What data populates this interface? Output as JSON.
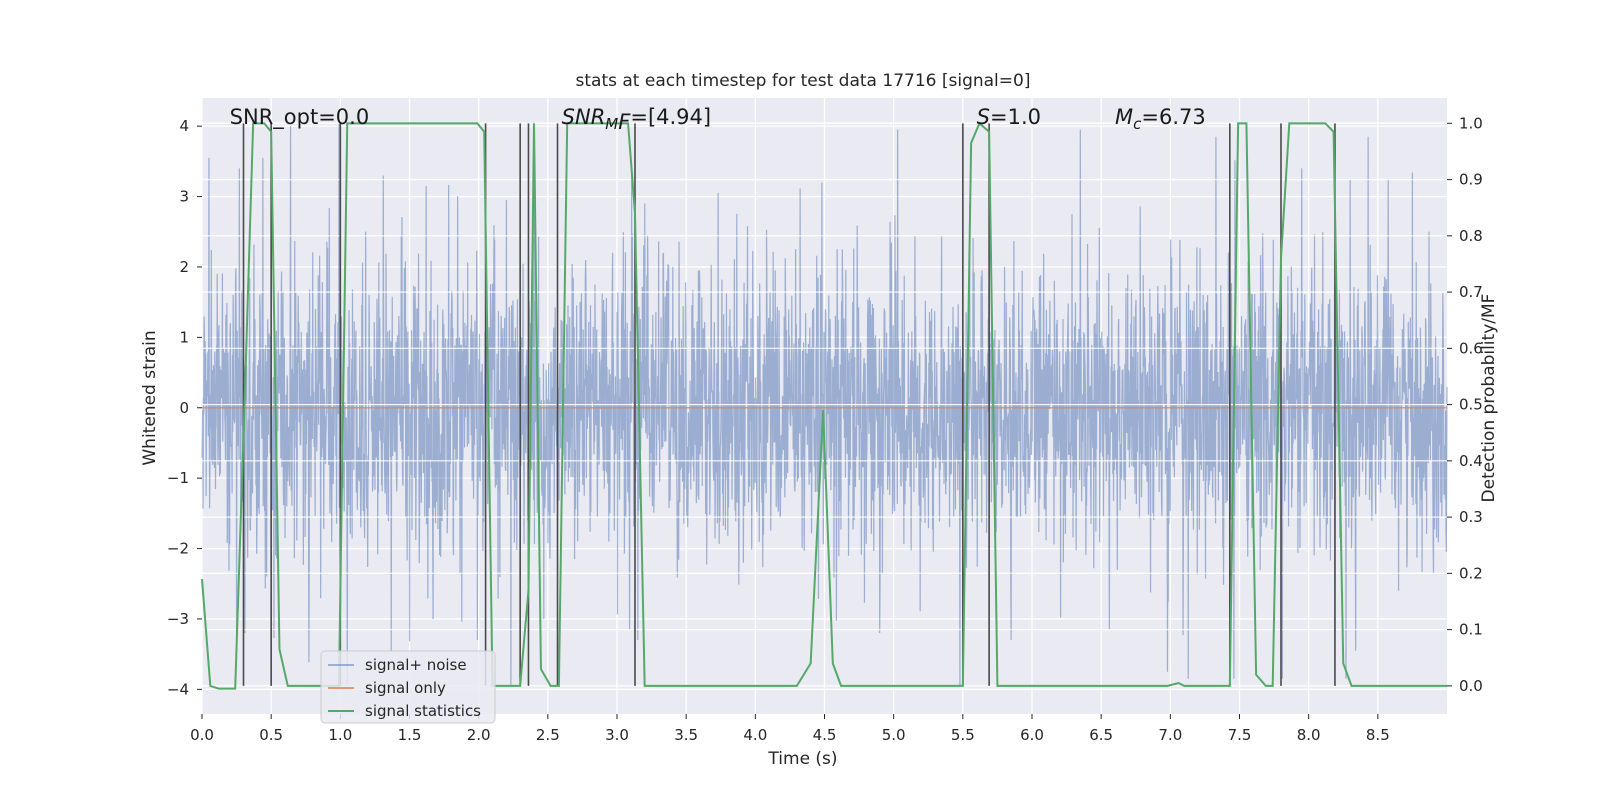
{
  "chart_data": {
    "type": "line",
    "title": "stats at each timestep for test data 17716 [signal=0]",
    "xlabel": "Time (s)",
    "ylabel": "Whitened strain",
    "ylabel_right": "Detection probability/MF",
    "xlim": [
      0.0,
      9.0
    ],
    "ylim": [
      -4.35,
      4.4
    ],
    "ylim_right": [
      -0.05,
      1.045
    ],
    "x_ticks": [
      "0.0",
      "0.5",
      "1.0",
      "1.5",
      "2.0",
      "2.5",
      "3.0",
      "3.5",
      "4.0",
      "4.5",
      "5.0",
      "5.5",
      "6.0",
      "6.5",
      "7.0",
      "7.5",
      "8.0",
      "8.5"
    ],
    "y_ticks": [
      "4",
      "3",
      "2",
      "1",
      "0",
      "−1",
      "−2",
      "−3",
      "−4"
    ],
    "y_ticks_right": [
      "1.0",
      "0.9",
      "0.8",
      "0.7",
      "0.6",
      "0.5",
      "0.4",
      "0.3",
      "0.2",
      "0.1",
      "0.0"
    ],
    "grid": true,
    "legend_position": "lower-left",
    "annotations": [
      {
        "text": "SNR_opt=0.0",
        "x": 0.2
      },
      {
        "text": "SNR",
        "sub": "M",
        "rest": "F=[4.94]",
        "italic": true,
        "x": 2.6
      },
      {
        "text": "S",
        "rest": "=1.0",
        "italic": true,
        "x": 5.6
      },
      {
        "text": "M",
        "sub": "c",
        "rest": "=6.73",
        "italic": true,
        "x": 6.6
      }
    ],
    "series": [
      {
        "name": "signal+ noise",
        "color": "#4c72b0",
        "kind": "noise",
        "sigma": 1.0,
        "spikes": [
          [
            0.05,
            3.55
          ],
          [
            0.27,
            3.4
          ],
          [
            0.44,
            3.55
          ],
          [
            0.64,
            4.0
          ],
          [
            0.99,
            4.05
          ],
          [
            1.31,
            3.3
          ],
          [
            1.62,
            3.15
          ],
          [
            2.2,
            2.95
          ],
          [
            3.73,
            3.05
          ],
          [
            4.48,
            3.2
          ],
          [
            4.9,
            3.2
          ],
          [
            5.03,
            3.95
          ],
          [
            6.35,
            3.95
          ],
          [
            7.33,
            3.85
          ],
          [
            7.95,
            3.4
          ],
          [
            8.43,
            3.85
          ],
          [
            8.3,
            3.25
          ],
          [
            0.31,
            -3.2
          ],
          [
            0.5,
            -3.3
          ],
          [
            1.05,
            -3.95
          ],
          [
            1.67,
            -3.0
          ],
          [
            1.99,
            -3.3
          ],
          [
            2.47,
            -3.0
          ],
          [
            3.09,
            -3.15
          ],
          [
            3.15,
            -3.3
          ],
          [
            4.9,
            -3.2
          ],
          [
            5.48,
            -3.95
          ],
          [
            5.85,
            -3.3
          ],
          [
            6.56,
            -3.15
          ],
          [
            6.98,
            -3.75
          ],
          [
            7.13,
            -3.85
          ],
          [
            7.46,
            -3.85
          ],
          [
            7.81,
            -3.85
          ],
          [
            8.27,
            -3.85
          ],
          [
            8.34,
            -3.45
          ]
        ]
      },
      {
        "name": "signal only",
        "color": "#dd8452",
        "kind": "line",
        "x": [
          0.0,
          9.0
        ],
        "y": [
          0.0,
          0.0
        ]
      },
      {
        "name": "signal statistics",
        "color": "#55a868",
        "kind": "line",
        "axis": "right",
        "x": [
          0.0,
          0.06,
          0.12,
          0.18,
          0.24,
          0.31,
          0.37,
          0.45,
          0.5,
          0.56,
          0.62,
          0.68,
          0.74,
          0.81,
          0.87,
          0.93,
          0.99,
          1.05,
          1.11,
          1.17,
          1.99,
          2.04,
          2.1,
          2.17,
          2.23,
          2.3,
          2.36,
          2.4,
          2.45,
          2.52,
          2.58,
          2.64,
          2.7,
          3.08,
          3.13,
          3.2,
          3.27,
          4.3,
          4.4,
          4.49,
          4.56,
          4.62,
          5.5,
          5.56,
          5.62,
          5.69,
          5.75,
          6.9,
          6.98,
          7.06,
          7.1,
          7.43,
          7.49,
          7.55,
          7.62,
          7.69,
          7.74,
          7.8,
          7.86,
          7.92,
          8.12,
          8.18,
          8.25,
          8.31,
          8.37,
          8.43,
          9.0
        ],
        "y": [
          0.19,
          0.0,
          -0.005,
          -0.005,
          -0.005,
          0.52,
          1.0,
          1.0,
          0.985,
          0.065,
          0.0,
          0.0,
          0.0,
          0.0,
          0.0,
          0.0,
          0.0,
          1.0,
          1.0,
          1.0,
          1.0,
          0.985,
          0.0,
          0.0,
          0.0,
          0.0,
          0.17,
          1.0,
          0.03,
          0.0,
          0.0,
          1.0,
          1.0,
          1.0,
          0.84,
          0.0,
          0.0,
          0.0,
          0.04,
          0.49,
          0.04,
          0.0,
          0.0,
          0.965,
          1.0,
          0.985,
          0.0,
          0.0,
          0.0,
          0.005,
          0.0,
          0.0,
          1.0,
          1.0,
          0.02,
          0.0,
          0.0,
          0.76,
          1.0,
          1.0,
          1.0,
          0.985,
          0.04,
          0.0,
          0.0,
          0.0,
          0.0
        ]
      }
    ],
    "vlines": [
      0.3,
      0.5,
      1.0,
      2.05,
      2.3,
      2.36,
      2.57,
      3.13,
      5.5,
      5.69,
      7.43,
      7.8,
      8.19
    ]
  }
}
